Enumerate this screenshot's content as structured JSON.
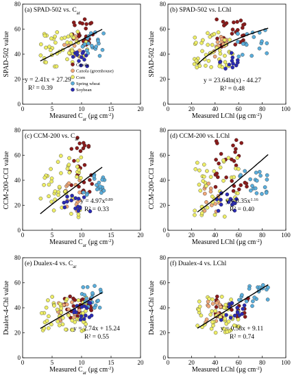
{
  "colors": {
    "Canola": "#8b1a1a",
    "Canola (greenhouse)": "#f0a878",
    "Corn": "#eeee66",
    "Spring wheat": "#5aaedc",
    "Soybean": "#2a2ab4"
  },
  "legend": [
    "Canola",
    "Canola (greenhouse)",
    "Corn",
    "Spring wheat",
    "Soybean"
  ],
  "chart_data": [
    {
      "type": "scatter",
      "panel": "a",
      "title": "(a) SPAD-502 vs. C",
      "title_sub": "ar",
      "xlabel": "Measured C",
      "xlabel_sub": "ar",
      "xunit": " (μg cm",
      "ylabel": "SPAD-502 value",
      "xlim": [
        0,
        20
      ],
      "ylim": [
        0,
        80
      ],
      "xticks": [
        "0",
        "5",
        "10",
        "15",
        "20"
      ],
      "yticks": [
        "0",
        "20",
        "40",
        "60",
        "80"
      ],
      "fit": {
        "form": "linear",
        "a": 2.41,
        "b": 27.29,
        "x_range": [
          3,
          13.5
        ]
      },
      "eq": "y = 2.41x + 27.29",
      "r2": "R² = 0.39",
      "series": [
        {
          "name": "Canola",
          "x_range": [
            8,
            12
          ],
          "y_range": [
            45,
            68
          ],
          "n": 28
        },
        {
          "name": "Canola (greenhouse)",
          "x_range": [
            7,
            11
          ],
          "y_range": [
            38,
            55
          ],
          "n": 15
        },
        {
          "name": "Corn",
          "x_range": [
            3,
            11
          ],
          "y_range": [
            30,
            58
          ],
          "n": 45
        },
        {
          "name": "Spring wheat",
          "x_range": [
            10,
            14
          ],
          "y_range": [
            38,
            58
          ],
          "n": 20
        },
        {
          "name": "Soybean",
          "x_range": [
            8.5,
            11
          ],
          "y_range": [
            30,
            42
          ],
          "n": 12
        }
      ]
    },
    {
      "type": "scatter",
      "panel": "b",
      "title": "(b) SPAD-502 vs. LChl",
      "xlabel": "Measured LChl (μg cm",
      "ylabel": "SPAD-502 value",
      "xlim": [
        0,
        100
      ],
      "ylim": [
        0,
        80
      ],
      "xticks": [
        "0",
        "20",
        "40",
        "60",
        "80",
        "100"
      ],
      "yticks": [
        "0",
        "20",
        "40",
        "60",
        "80"
      ],
      "fit": {
        "form": "log",
        "a": 23.64,
        "b": -44.27,
        "x_range": [
          25,
          85
        ]
      },
      "eq": "y = 23.64ln(x) - 44.27",
      "r2": "R² = 0.48",
      "series": [
        {
          "name": "Canola",
          "x_range": [
            40,
            70
          ],
          "y_range": [
            45,
            68
          ],
          "n": 28
        },
        {
          "name": "Canola (greenhouse)",
          "x_range": [
            35,
            50
          ],
          "y_range": [
            38,
            55
          ],
          "n": 15
        },
        {
          "name": "Corn",
          "x_range": [
            22,
            55
          ],
          "y_range": [
            28,
            58
          ],
          "n": 45
        },
        {
          "name": "Spring wheat",
          "x_range": [
            55,
            85
          ],
          "y_range": [
            38,
            60
          ],
          "n": 20
        },
        {
          "name": "Soybean",
          "x_range": [
            40,
            60
          ],
          "y_range": [
            28,
            42
          ],
          "n": 12
        }
      ]
    },
    {
      "type": "scatter",
      "panel": "c",
      "title": "(c) CCM-200 vs. C",
      "title_sub": "ar",
      "xlabel": "Measured C",
      "xlabel_sub": "ar",
      "xunit": " (μg cm",
      "ylabel": "CCM-200-CCI value",
      "xlim": [
        0,
        20
      ],
      "ylim": [
        0,
        80
      ],
      "xticks": [
        "0",
        "5",
        "10",
        "15",
        "20"
      ],
      "yticks": [
        "0",
        "20",
        "40",
        "60",
        "80"
      ],
      "fit": {
        "form": "power",
        "a": 4.97,
        "b": 0.89,
        "x_range": [
          3,
          13.5
        ]
      },
      "eq": "y = 4.97x",
      "eq_sup": "0.89",
      "r2": "R² = 0.33",
      "series": [
        {
          "name": "Canola",
          "x_range": [
            8,
            12
          ],
          "y_range": [
            30,
            75
          ],
          "n": 28
        },
        {
          "name": "Canola (greenhouse)",
          "x_range": [
            7,
            10
          ],
          "y_range": [
            15,
            40
          ],
          "n": 15
        },
        {
          "name": "Corn",
          "x_range": [
            3,
            10
          ],
          "y_range": [
            10,
            60
          ],
          "n": 45
        },
        {
          "name": "Spring wheat",
          "x_range": [
            10,
            14
          ],
          "y_range": [
            28,
            45
          ],
          "n": 20
        },
        {
          "name": "Soybean",
          "x_range": [
            7,
            12
          ],
          "y_range": [
            15,
            30
          ],
          "n": 15
        }
      ]
    },
    {
      "type": "scatter",
      "panel": "d",
      "title": "(d) CCM-200 vs. LChl",
      "xlabel": "Measured LChl (μg cm",
      "ylabel": "CCM-200-CCI value",
      "xlim": [
        0,
        100
      ],
      "ylim": [
        0,
        80
      ],
      "xticks": [
        "0",
        "20",
        "40",
        "60",
        "80",
        "100"
      ],
      "yticks": [
        "0",
        "20",
        "40",
        "60",
        "80"
      ],
      "fit": {
        "form": "power",
        "a": 0.35,
        "b": 1.16,
        "x_range": [
          25,
          85
        ]
      },
      "eq": "y = 0.35x",
      "eq_sup": "1.16",
      "r2": "R² = 0.40",
      "series": [
        {
          "name": "Canola",
          "x_range": [
            40,
            70
          ],
          "y_range": [
            30,
            75
          ],
          "n": 28
        },
        {
          "name": "Canola (greenhouse)",
          "x_range": [
            30,
            45
          ],
          "y_range": [
            15,
            40
          ],
          "n": 15
        },
        {
          "name": "Corn",
          "x_range": [
            22,
            60
          ],
          "y_range": [
            10,
            60
          ],
          "n": 45
        },
        {
          "name": "Spring wheat",
          "x_range": [
            60,
            85
          ],
          "y_range": [
            28,
            48
          ],
          "n": 20
        },
        {
          "name": "Soybean",
          "x_range": [
            40,
            65
          ],
          "y_range": [
            15,
            30
          ],
          "n": 15
        }
      ]
    },
    {
      "type": "scatter",
      "panel": "e",
      "title": "(e) Dualex-4 vs. C",
      "title_sub": "ar",
      "xlabel": "Measured C",
      "xlabel_sub": "ar",
      "xunit": " (μg cm",
      "ylabel": "Dualex-4-Chl value",
      "xlim": [
        0,
        20
      ],
      "ylim": [
        0,
        80
      ],
      "xticks": [
        "0",
        "5",
        "10",
        "15",
        "20"
      ],
      "yticks": [
        "0",
        "20",
        "40",
        "60",
        "80"
      ],
      "fit": {
        "form": "linear",
        "a": 2.74,
        "b": 15.24,
        "x_range": [
          3,
          13.5
        ]
      },
      "eq": "y = 2.74x + 15.24",
      "r2": "R² = 0.55",
      "series": [
        {
          "name": "Canola",
          "x_range": [
            7,
            12
          ],
          "y_range": [
            32,
            50
          ],
          "n": 28
        },
        {
          "name": "Canola (greenhouse)",
          "x_range": [
            6,
            10
          ],
          "y_range": [
            28,
            45
          ],
          "n": 15
        },
        {
          "name": "Corn",
          "x_range": [
            3,
            11
          ],
          "y_range": [
            20,
            50
          ],
          "n": 50
        },
        {
          "name": "Spring wheat",
          "x_range": [
            10,
            13.5
          ],
          "y_range": [
            40,
            58
          ],
          "n": 20
        },
        {
          "name": "Soybean",
          "x_range": [
            8,
            12
          ],
          "y_range": [
            30,
            45
          ],
          "n": 15
        }
      ]
    },
    {
      "type": "scatter",
      "panel": "f",
      "title": "(f) Dualex-4 vs. LChl",
      "xlabel": "Measured LChl (μg cm",
      "ylabel": "Dualex-4-Chl value",
      "xlim": [
        0,
        100
      ],
      "ylim": [
        0,
        80
      ],
      "xticks": [
        "0",
        "20",
        "40",
        "60",
        "80",
        "100"
      ],
      "yticks": [
        "0",
        "20",
        "40",
        "60",
        "80"
      ],
      "fit": {
        "form": "linear",
        "a": 0.58,
        "b": 9.11,
        "x_range": [
          25,
          85
        ]
      },
      "eq": "y = 0.58x + 9.11",
      "r2": "R² = 0.74",
      "series": [
        {
          "name": "Canola",
          "x_range": [
            40,
            70
          ],
          "y_range": [
            32,
            50
          ],
          "n": 28
        },
        {
          "name": "Canola (greenhouse)",
          "x_range": [
            30,
            45
          ],
          "y_range": [
            28,
            45
          ],
          "n": 15
        },
        {
          "name": "Corn",
          "x_range": [
            22,
            60
          ],
          "y_range": [
            20,
            50
          ],
          "n": 50
        },
        {
          "name": "Spring wheat",
          "x_range": [
            60,
            85
          ],
          "y_range": [
            40,
            60
          ],
          "n": 20
        },
        {
          "name": "Soybean",
          "x_range": [
            45,
            70
          ],
          "y_range": [
            30,
            45
          ],
          "n": 15
        }
      ]
    }
  ]
}
